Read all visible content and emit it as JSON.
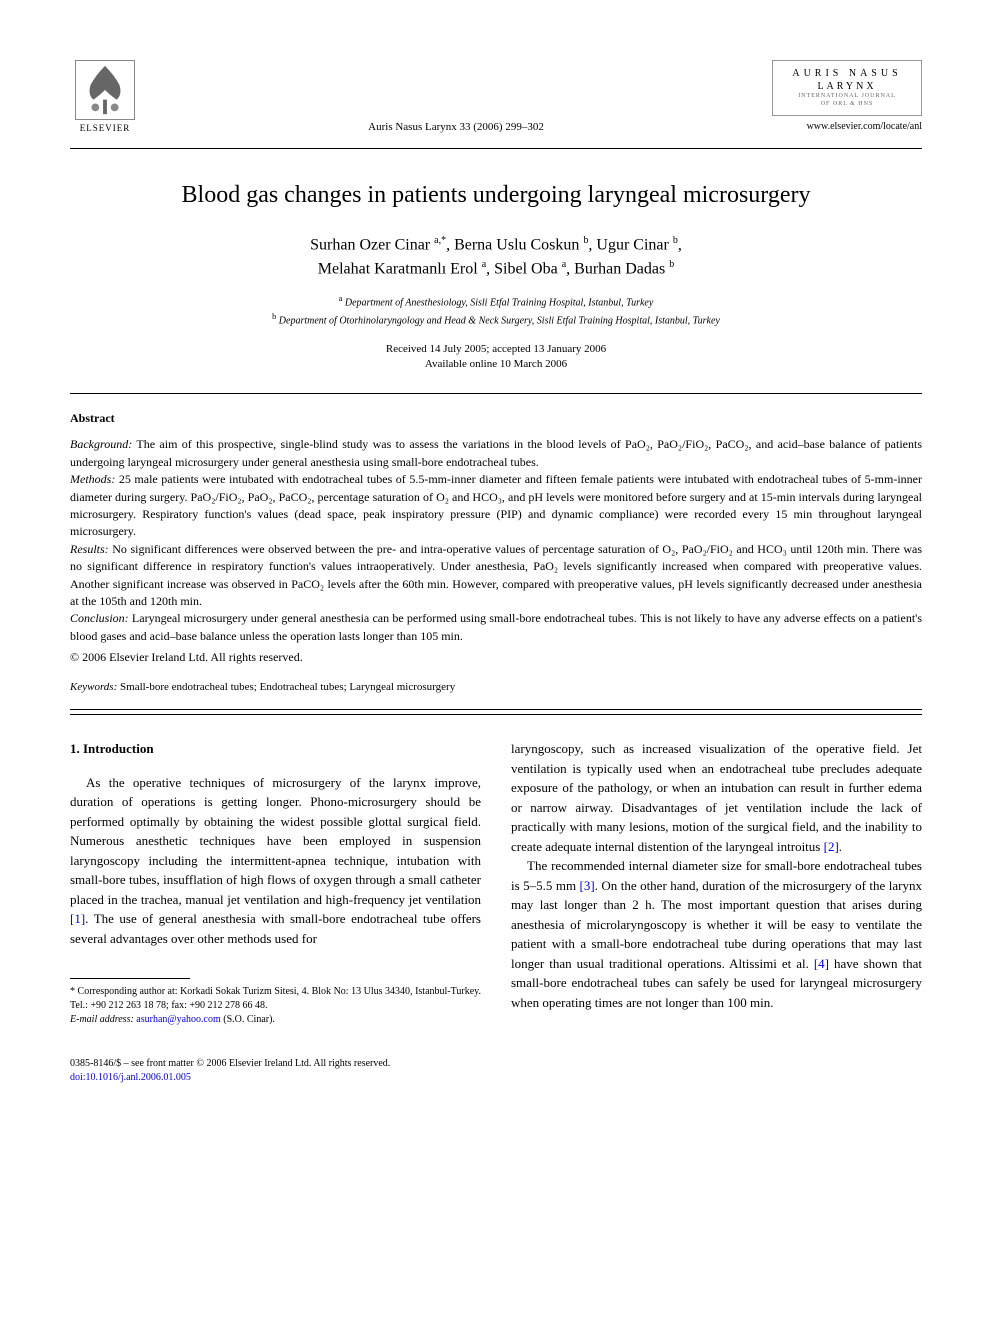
{
  "header": {
    "publisher": "ELSEVIER",
    "citation": "Auris Nasus Larynx 33 (2006) 299–302",
    "journal_box": {
      "line1": "AURIS NASUS",
      "line2": "LARYNX",
      "sub1": "INTERNATIONAL JOURNAL",
      "sub2": "OF ORL & HNS"
    },
    "url": "www.elsevier.com/locate/anl"
  },
  "title": "Blood gas changes in patients undergoing laryngeal microsurgery",
  "authors_html": "Surhan Ozer Cinar <sup>a,*</sup>, Berna Uslu Coskun <sup>b</sup>, Ugur Cinar <sup>b</sup>,<br>Melahat Karatmanlı Erol <sup>a</sup>, Sibel Oba <sup>a</sup>, Burhan Dadas <sup>b</sup>",
  "affiliations": {
    "a": "Department of Anesthesiology, Sisli Etfal Training Hospital, Istanbul, Turkey",
    "b": "Department of Otorhinolaryngology and Head & Neck Surgery, Sisli Etfal Training Hospital, Istanbul, Turkey"
  },
  "dates": {
    "received_accepted": "Received 14 July 2005; accepted 13 January 2006",
    "online": "Available online 10 March 2006"
  },
  "abstract": {
    "heading": "Abstract",
    "background_label": "Background:",
    "background": "The aim of this prospective, single-blind study was to assess the variations in the blood levels of PaO₂, PaO₂/FiO₂, PaCO₂, and acid–base balance of patients undergoing laryngeal microsurgery under general anesthesia using small-bore endotracheal tubes.",
    "methods_label": "Methods:",
    "methods": "25 male patients were intubated with endotracheal tubes of 5.5-mm-inner diameter and fifteen female patients were intubated with endotracheal tubes of 5-mm-inner diameter during surgery. PaO₂/FiO₂, PaO₂, PaCO₂, percentage saturation of O₂ and HCO₃, and pH levels were monitored before surgery and at 15-min intervals during laryngeal microsurgery. Respiratory function's values (dead space, peak inspiratory pressure (PIP) and dynamic compliance) were recorded every 15 min throughout laryngeal microsurgery.",
    "results_label": "Results:",
    "results": "No significant differences were observed between the pre- and intra-operative values of percentage saturation of O₂, PaO₂/FiO₂ and HCO₃ until 120th min. There was no significant difference in respiratory function's values intraoperatively. Under anesthesia, PaO₂ levels significantly increased when compared with preoperative values. Another significant increase was observed in PaCO₂ levels after the 60th min. However, compared with preoperative values, pH levels significantly decreased under anesthesia at the 105th and 120th min.",
    "conclusion_label": "Conclusion:",
    "conclusion": "Laryngeal microsurgery under general anesthesia can be performed using small-bore endotracheal tubes. This is not likely to have any adverse effects on a patient's blood gases and acid–base balance unless the operation lasts longer than 105 min.",
    "copyright": "© 2006 Elsevier Ireland Ltd. All rights reserved."
  },
  "keywords": {
    "label": "Keywords:",
    "text": "Small-bore endotracheal tubes; Endotracheal tubes; Laryngeal microsurgery"
  },
  "body": {
    "section_num": "1.",
    "section_title": "Introduction",
    "col1_p1": "As the operative techniques of microsurgery of the larynx improve, duration of operations is getting longer. Phono-microsurgery should be performed optimally by obtaining the widest possible glottal surgical field. Numerous anesthetic techniques have been employed in suspension laryngoscopy including the intermittent-apnea technique, intubation with small-bore tubes, insufflation of high flows of oxygen through a small catheter placed in the trachea, manual jet ventilation and high-frequency jet ventilation ",
    "ref1": "[1]",
    "col1_p1b": ". The use of general anesthesia with small-bore endotracheal tube offers several advantages over other methods used for",
    "col2_p1": "laryngoscopy, such as increased visualization of the operative field. Jet ventilation is typically used when an endotracheal tube precludes adequate exposure of the pathology, or when an intubation can result in further edema or narrow airway. Disadvantages of jet ventilation include the lack of practically with many lesions, motion of the surgical field, and the inability to create adequate internal distention of the laryngeal introitus ",
    "ref2": "[2]",
    "col2_p1b": ".",
    "col2_p2a": "The recommended internal diameter size for small-bore endotracheal tubes is 5–5.5 mm ",
    "ref3": "[3]",
    "col2_p2b": ". On the other hand, duration of the microsurgery of the larynx may last longer than 2 h. The most important question that arises during anesthesia of microlaryngoscopy is whether it will be easy to ventilate the patient with a small-bore endotracheal tube during operations that may last longer than usual traditional operations. Altissimi et al. ",
    "ref4": "[4]",
    "col2_p2c": " have shown that small-bore endotracheal tubes can safely be used for laryngeal microsurgery when operating times are not longer than 100 min."
  },
  "footnotes": {
    "corr_label": "* Corresponding author at:",
    "corr_text": " Korkadi Sokak Turizm Sitesi, 4. Blok No: 13 Ulus 34340, Istanbul-Turkey. Tel.: +90 212 263 18 78; fax: +90 212 278 66 48.",
    "email_label": "E-mail address:",
    "email": "asurhan@yahoo.com",
    "email_suffix": " (S.O. Cinar)."
  },
  "footer": {
    "issn": "0385-8146/$ – see front matter © 2006 Elsevier Ireland Ltd. All rights reserved.",
    "doi": "doi:10.1016/j.anl.2006.01.005"
  },
  "colors": {
    "link": "#0000cc",
    "text": "#000000",
    "background": "#ffffff"
  }
}
